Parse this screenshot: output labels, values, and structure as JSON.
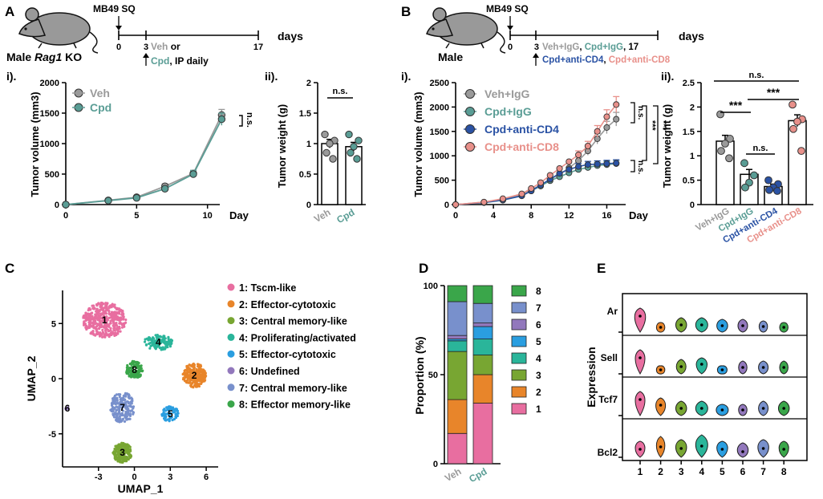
{
  "colors": {
    "veh": "#9a9a9a",
    "cpd": "#5a9d95",
    "cpd_cd4": "#2a52a4",
    "cpd_cd8": "#e8908a",
    "c1": "#e86ea0",
    "c2": "#e8852a",
    "c3": "#78a632",
    "c4": "#2ab59a",
    "c5": "#2a9ee0",
    "c6": "#9278bc",
    "c7": "#7890cc",
    "c8": "#3aa64a"
  },
  "panelA": {
    "letter": "A",
    "mouse_label_pre": "Male ",
    "mouse_label_italic": "Rag1",
    "mouse_label_post": " KO",
    "model": "MB49 SQ",
    "timeline_ticks": [
      "0",
      "3",
      "17"
    ],
    "timeline_unit": "days",
    "treatment_veh": "Veh",
    "treatment_or": " or",
    "treatment_cpd": "Cpd",
    "treatment_schedule": ", IP daily",
    "sub_i": "i).",
    "sub_ii": "ii).",
    "significance_curve": "n.s.",
    "significance_bar": "n.s.",
    "bar_groups": [
      "Veh",
      "Cpd"
    ]
  },
  "panelB": {
    "letter": "B",
    "mouse_label": "Male",
    "model": "MB49 SQ",
    "timeline_ticks": [
      "0",
      "3",
      "17"
    ],
    "timeline_unit": "days",
    "treat_veh_igg": "Veh+IgG",
    "treat_cpd_igg": "Cpd+IgG",
    "treat_cd4": "Cpd+anti-CD4",
    "treat_cd8": "Cpd+anti-CD8",
    "sub_i": "i).",
    "sub_ii": "ii).",
    "sig_ns_1": "n.s.",
    "sig_ns_2": "n.s.",
    "sig_stars_1": "***",
    "sig_stars_2": "***",
    "bar_sig_top": "n.s.",
    "bar_sig_left": "***",
    "bar_sig_right": "***",
    "bar_sig_mid": "n.s.",
    "bar_groups": [
      "Veh+IgG",
      "Cpd+IgG",
      "Cpd+anti-CD4",
      "Cpd+anti-CD8"
    ]
  },
  "panelC": {
    "letter": "C",
    "legend": [
      "1: Tscm-like",
      "2: Effector-cytotoxic",
      "3: Central memory-like",
      "4: Proliferating/activated",
      "5: Effector-cytotoxic",
      "6: Undefined",
      "7: Central memory-like",
      "8: Effector memory-like"
    ]
  },
  "panelD": {
    "letter": "D",
    "legend": [
      "8",
      "7",
      "6",
      "5",
      "4",
      "3",
      "2",
      "1"
    ]
  },
  "panelE": {
    "letter": "E"
  },
  "chart_data": [
    {
      "id": "A_i",
      "type": "line",
      "xlabel": "Day",
      "ylabel": "Tumor volume (mm3)",
      "xlim": [
        0,
        12
      ],
      "ylim": [
        0,
        2000
      ],
      "xticks": [
        0,
        5,
        10
      ],
      "yticks": [
        0,
        500,
        1000,
        1500,
        2000
      ],
      "x": [
        0,
        3,
        5,
        7,
        9,
        11
      ],
      "series": [
        {
          "name": "Veh",
          "values": [
            0,
            70,
            120,
            300,
            510,
            1470
          ],
          "err": [
            0,
            20,
            25,
            40,
            50,
            90
          ]
        },
        {
          "name": "Cpd",
          "values": [
            0,
            65,
            110,
            260,
            500,
            1400
          ],
          "err": [
            0,
            20,
            25,
            40,
            60,
            100
          ]
        }
      ]
    },
    {
      "id": "A_ii",
      "type": "bar",
      "ylabel": "Tumor weight (g)",
      "ylim": [
        0,
        2.0
      ],
      "yticks": [
        0.0,
        0.5,
        1.0,
        1.5,
        2.0
      ],
      "categories": [
        "Veh",
        "Cpd"
      ],
      "values": [
        1.0,
        0.95
      ],
      "err": [
        0.07,
        0.07
      ],
      "points": [
        [
          1.15,
          1.05,
          1.0,
          0.85,
          0.75
        ],
        [
          1.15,
          1.05,
          0.95,
          0.85,
          0.75
        ]
      ]
    },
    {
      "id": "B_i",
      "type": "line",
      "xlabel": "Day",
      "ylabel": "Tumor volume (mm3)",
      "xlim": [
        0,
        18
      ],
      "ylim": [
        0,
        2500
      ],
      "xticks": [
        0,
        4,
        8,
        12,
        16
      ],
      "yticks": [
        0,
        500,
        1000,
        1500,
        2000,
        2500
      ],
      "x": [
        0,
        3,
        5,
        7,
        8,
        9,
        10,
        11,
        12,
        13,
        14,
        15,
        16,
        17
      ],
      "series": [
        {
          "name": "Veh+IgG",
          "values": [
            0,
            50,
            110,
            200,
            300,
            400,
            520,
            620,
            750,
            900,
            1100,
            1350,
            1580,
            1750
          ]
        },
        {
          "name": "Cpd+IgG",
          "values": [
            0,
            40,
            90,
            180,
            280,
            380,
            490,
            570,
            650,
            720,
            760,
            800,
            820,
            840
          ]
        },
        {
          "name": "Cpd+anti-CD4",
          "values": [
            0,
            40,
            95,
            180,
            280,
            400,
            520,
            640,
            720,
            780,
            820,
            830,
            840,
            850
          ]
        },
        {
          "name": "Cpd+anti-CD8",
          "values": [
            0,
            50,
            120,
            220,
            330,
            450,
            600,
            740,
            880,
            1020,
            1200,
            1500,
            1800,
            2050
          ]
        }
      ]
    },
    {
      "id": "B_ii",
      "type": "bar",
      "ylabel": "Tumor weight (g)",
      "ylim": [
        0,
        2.5
      ],
      "yticks": [
        0.0,
        0.5,
        1.0,
        1.5,
        2.0,
        2.5
      ],
      "categories": [
        "Veh+IgG",
        "Cpd+IgG",
        "Cpd+anti-CD4",
        "Cpd+anti-CD8"
      ],
      "values": [
        1.3,
        0.62,
        0.37,
        1.72
      ],
      "err": [
        0.12,
        0.1,
        0.05,
        0.12
      ],
      "points": [
        [
          1.85,
          1.35,
          1.25,
          1.1,
          0.95
        ],
        [
          0.85,
          0.6,
          0.45,
          0.35
        ],
        [
          0.5,
          0.42,
          0.35,
          0.3,
          0.28
        ],
        [
          2.05,
          1.75,
          1.7,
          1.55,
          1.1
        ]
      ]
    },
    {
      "id": "C",
      "type": "scatter",
      "xlabel": "UMAP_1",
      "ylabel": "UMAP_2",
      "xticks": [
        -3,
        0,
        3,
        6
      ],
      "yticks": [
        -5,
        0,
        5
      ],
      "xlim": [
        -6,
        7
      ],
      "ylim": [
        -8,
        8
      ],
      "clusters": [
        {
          "name": "1",
          "cx": -2.5,
          "cy": 5.3
        },
        {
          "name": "2",
          "cx": 5.0,
          "cy": 0.3
        },
        {
          "name": "3",
          "cx": -1.0,
          "cy": -6.7
        },
        {
          "name": "4",
          "cx": 2.0,
          "cy": 3.3
        },
        {
          "name": "5",
          "cx": 3.0,
          "cy": -3.2
        },
        {
          "name": "6",
          "cx": -5.6,
          "cy": -2.7
        },
        {
          "name": "7",
          "cx": -1.0,
          "cy": -2.6
        },
        {
          "name": "8",
          "cx": 0.0,
          "cy": 0.8
        }
      ]
    },
    {
      "id": "D",
      "type": "bar",
      "stacked": true,
      "ylabel": "Proportion (%)",
      "ylim": [
        0,
        100
      ],
      "yticks": [
        0,
        50,
        100
      ],
      "categories": [
        "Veh",
        "Cpd"
      ],
      "series": [
        {
          "name": "1",
          "values": [
            17,
            34
          ]
        },
        {
          "name": "2",
          "values": [
            19,
            16
          ]
        },
        {
          "name": "3",
          "values": [
            27,
            11
          ]
        },
        {
          "name": "4",
          "values": [
            6,
            9
          ]
        },
        {
          "name": "5",
          "values": [
            1,
            7
          ]
        },
        {
          "name": "6",
          "values": [
            2,
            2
          ]
        },
        {
          "name": "7",
          "values": [
            19,
            11
          ]
        },
        {
          "name": "8",
          "values": [
            9,
            10
          ]
        }
      ]
    },
    {
      "id": "E",
      "type": "violin",
      "ylabel": "Expression",
      "genes": [
        "Ar",
        "Sell",
        "Tcf7",
        "Bcl2"
      ],
      "categories": [
        "1",
        "2",
        "3",
        "4",
        "5",
        "6",
        "7",
        "8"
      ]
    }
  ]
}
